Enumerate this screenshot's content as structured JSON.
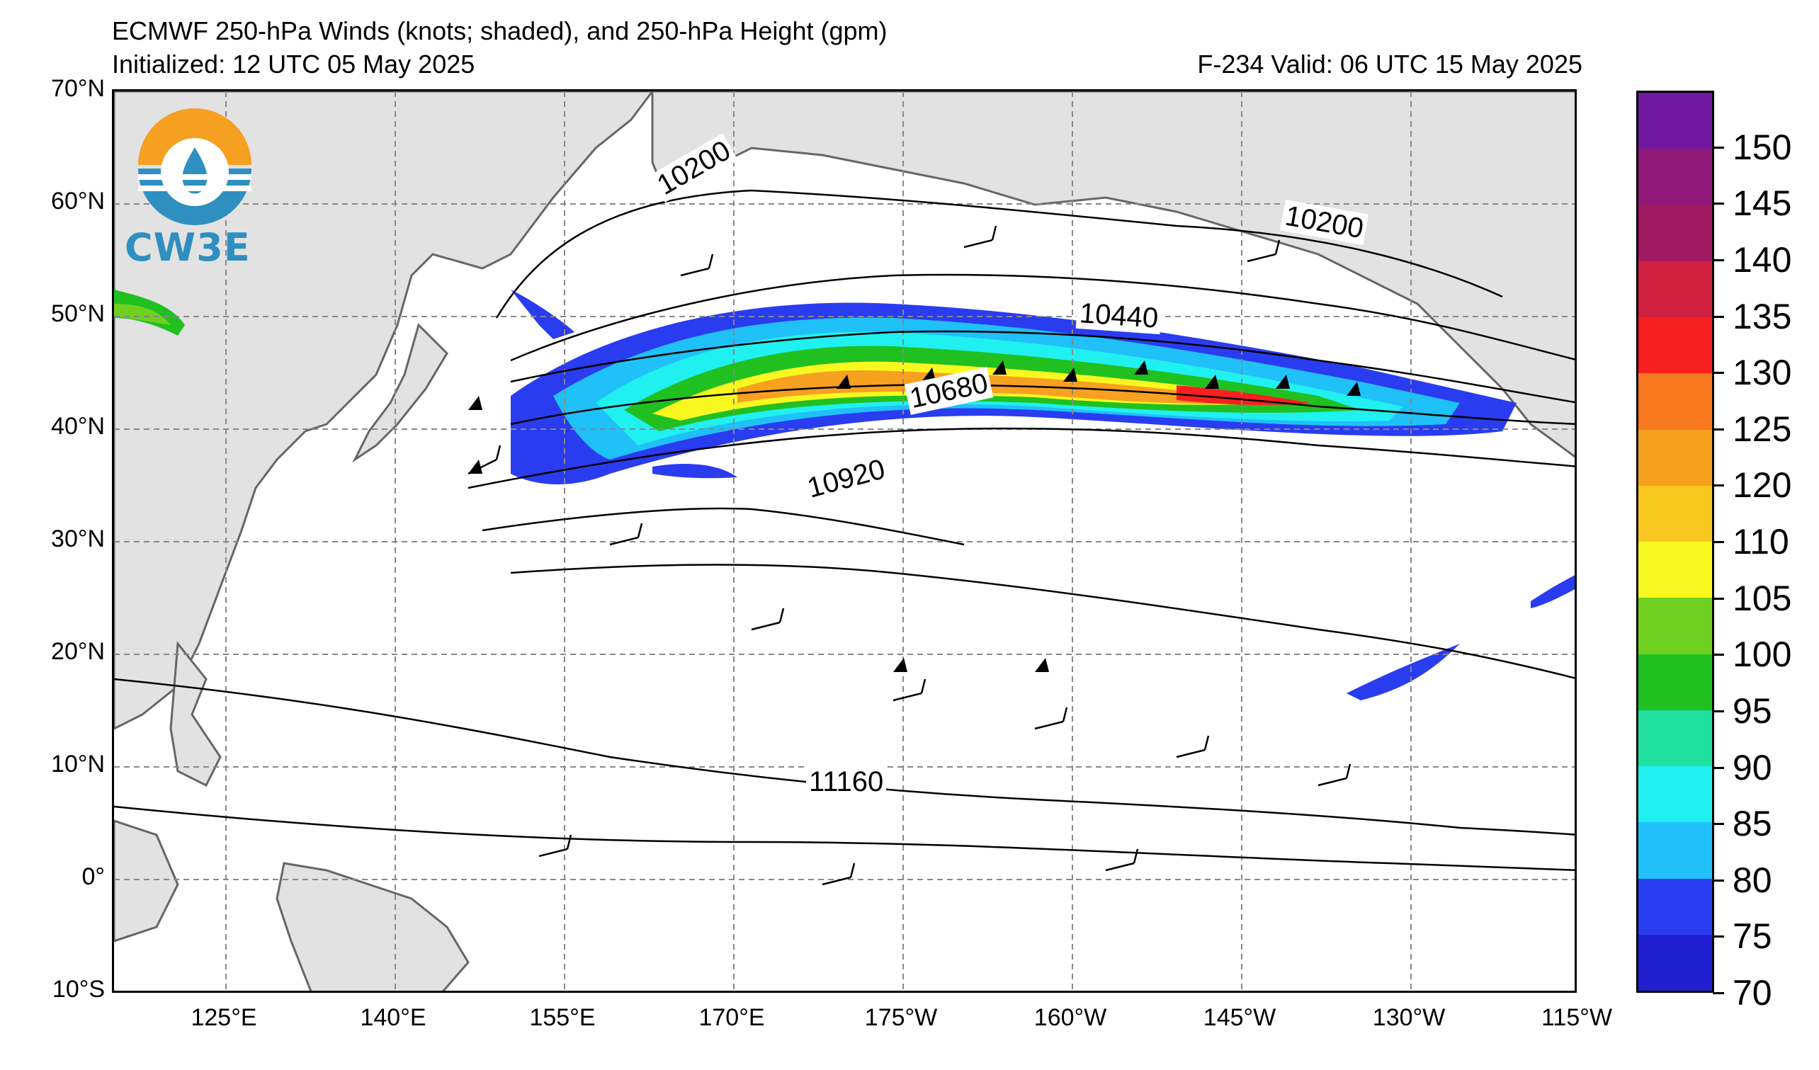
{
  "header": {
    "title": "ECMWF 250-hPa Winds (knots; shaded), and 250-hPa Height (gpm)",
    "initialized": "Initialized: 12 UTC 05 May 2025",
    "valid": "F-234  Valid: 06 UTC 15 May 2025"
  },
  "logo": {
    "text": "CW3E"
  },
  "map": {
    "lat_labels": [
      "70°N",
      "60°N",
      "50°N",
      "40°N",
      "30°N",
      "20°N",
      "10°N",
      "0°",
      "10°S"
    ],
    "lon_labels": [
      "125°E",
      "140°E",
      "155°E",
      "170°E",
      "175°W",
      "160°W",
      "145°W",
      "130°W",
      "115°W"
    ],
    "contour_labels": [
      "10200",
      "10200",
      "10440",
      "10680",
      "10920",
      "11160"
    ]
  },
  "colorbar": {
    "labels": [
      "70",
      "75",
      "80",
      "85",
      "90",
      "95",
      "100",
      "105",
      "110",
      "120",
      "125",
      "130",
      "135",
      "140",
      "145",
      "150"
    ],
    "colors": [
      "#2020d0",
      "#2a3cf0",
      "#20c0f8",
      "#20f0f0",
      "#20e0a0",
      "#20c020",
      "#70d020",
      "#f8f820",
      "#f8c820",
      "#f8a020",
      "#f87820",
      "#f82020",
      "#d02040",
      "#a01860",
      "#901878",
      "#7018a0"
    ]
  }
}
